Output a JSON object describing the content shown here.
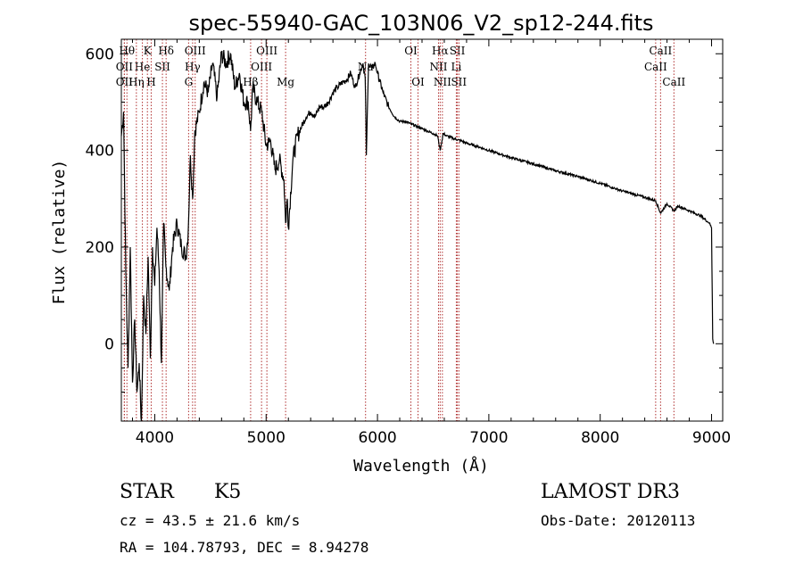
{
  "chart_data": {
    "type": "line",
    "title": "spec-55940-GAC_103N06_V2_sp12-244.fits",
    "xlabel": "Wavelength (Å)",
    "ylabel": "Flux (relative)",
    "xlim": [
      3700,
      9100
    ],
    "ylim": [
      -160,
      630
    ],
    "xticks": [
      4000,
      5000,
      6000,
      7000,
      8000,
      9000
    ],
    "yticks": [
      0,
      200,
      400,
      600
    ],
    "series": [
      {
        "name": "flux",
        "x": [
          3700,
          3720,
          3740,
          3760,
          3780,
          3800,
          3820,
          3840,
          3860,
          3880,
          3900,
          3920,
          3940,
          3960,
          3980,
          4000,
          4020,
          4040,
          4060,
          4080,
          4100,
          4130,
          4160,
          4200,
          4240,
          4280,
          4300,
          4320,
          4340,
          4360,
          4400,
          4440,
          4480,
          4520,
          4560,
          4600,
          4640,
          4680,
          4720,
          4760,
          4800,
          4840,
          4860,
          4880,
          4920,
          4960,
          5000,
          5040,
          5080,
          5120,
          5160,
          5175,
          5190,
          5200,
          5240,
          5280,
          5320,
          5360,
          5400,
          5440,
          5480,
          5520,
          5560,
          5600,
          5640,
          5680,
          5720,
          5760,
          5800,
          5840,
          5870,
          5890,
          5900,
          5920,
          5950,
          5980,
          6000,
          6050,
          6100,
          6150,
          6200,
          6250,
          6300,
          6350,
          6400,
          6450,
          6500,
          6540,
          6563,
          6590,
          6620,
          6680,
          6750,
          6800,
          6900,
          7000,
          7200,
          7400,
          7600,
          7800,
          8000,
          8200,
          8400,
          8498,
          8542,
          8600,
          8662,
          8700,
          8800,
          8900,
          8980,
          9000,
          9010,
          9020
        ],
        "y": [
          430,
          480,
          150,
          -50,
          200,
          -80,
          50,
          -100,
          -40,
          -170,
          100,
          20,
          180,
          -30,
          200,
          120,
          240,
          150,
          -40,
          250,
          160,
          110,
          200,
          250,
          200,
          180,
          230,
          390,
          300,
          440,
          480,
          540,
          520,
          580,
          510,
          600,
          580,
          600,
          530,
          560,
          500,
          500,
          440,
          530,
          500,
          480,
          410,
          420,
          360,
          380,
          340,
          250,
          300,
          240,
          380,
          430,
          450,
          470,
          480,
          470,
          490,
          490,
          500,
          520,
          530,
          540,
          545,
          560,
          530,
          560,
          580,
          550,
          390,
          580,
          570,
          580,
          560,
          520,
          490,
          470,
          460,
          460,
          455,
          450,
          445,
          440,
          435,
          430,
          400,
          435,
          430,
          425,
          420,
          415,
          408,
          400,
          385,
          372,
          358,
          346,
          332,
          316,
          303,
          296,
          270,
          290,
          275,
          285,
          275,
          265,
          250,
          240,
          10,
          0
        ]
      }
    ],
    "lines": [
      {
        "label": "Hθ",
        "x": 3750,
        "row": 0
      },
      {
        "label": "OII",
        "x": 3727,
        "row": 1
      },
      {
        "label": "OII",
        "x": 3727,
        "row": 2
      },
      {
        "label": "K",
        "x": 3934,
        "row": 0
      },
      {
        "label": "He",
        "x": 3889,
        "row": 1
      },
      {
        "label": "Hη",
        "x": 3835,
        "row": 2
      },
      {
        "label": "Hδ",
        "x": 4102,
        "row": 0
      },
      {
        "label": "SII",
        "x": 4069,
        "row": 1
      },
      {
        "label": "H",
        "x": 3968,
        "row": 2
      },
      {
        "label": "OIII",
        "x": 4363,
        "row": 0
      },
      {
        "label": "Hγ",
        "x": 4340,
        "row": 1
      },
      {
        "label": "G",
        "x": 4304,
        "row": 2
      },
      {
        "label": "Hβ",
        "x": 4861,
        "row": 2
      },
      {
        "label": "OIII",
        "x": 5007,
        "row": 0
      },
      {
        "label": "OIII",
        "x": 4959,
        "row": 1
      },
      {
        "label": "Mg",
        "x": 5175,
        "row": 2
      },
      {
        "label": "Na",
        "x": 5893,
        "row": 1
      },
      {
        "label": "OI",
        "x": 6300,
        "row": 0
      },
      {
        "label": "OI",
        "x": 6364,
        "row": 2
      },
      {
        "label": "Hα",
        "x": 6563,
        "row": 0
      },
      {
        "label": "NII",
        "x": 6548,
        "row": 1
      },
      {
        "label": "NII",
        "x": 6583,
        "row": 2
      },
      {
        "label": "SII",
        "x": 6717,
        "row": 0
      },
      {
        "label": "Li",
        "x": 6708,
        "row": 1
      },
      {
        "label": "SII",
        "x": 6731,
        "row": 2
      },
      {
        "label": "CaII",
        "x": 8542,
        "row": 0
      },
      {
        "label": "CaII",
        "x": 8498,
        "row": 1
      },
      {
        "label": "CaII",
        "x": 8662,
        "row": 2
      }
    ]
  },
  "info": {
    "object_class": "STAR",
    "subclass": "K5",
    "survey": "LAMOST DR3",
    "cz": "cz = 43.5  ± 21.6 km/s",
    "obs_date": "Obs-Date: 20120113",
    "coords": "RA = 104.78793, DEC =    8.94278"
  }
}
